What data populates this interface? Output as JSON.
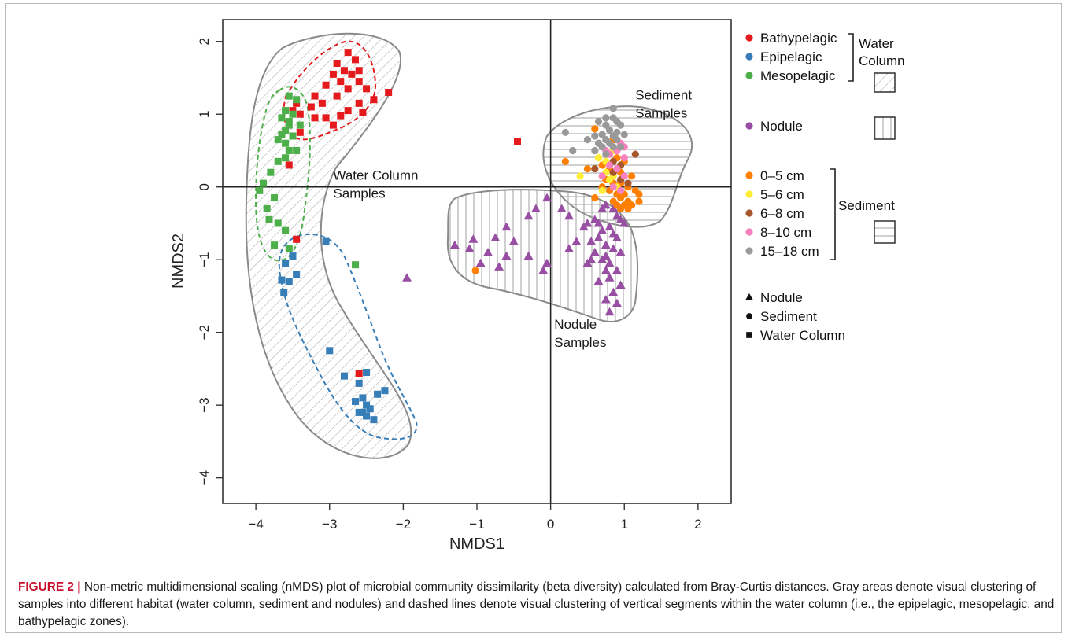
{
  "caption": {
    "label": "FIGURE 2 |",
    "text": " Non-metric multidimensional scaling (nMDS) plot of microbial community dissimilarity (beta diversity) calculated from Bray-Curtis distances. Gray areas denote visual clustering of samples into different habitat (water column, sediment and nodules) and dashed lines denote visual clustering of vertical segments within the water column (i.e., the epipelagic, mesopelagic, and bathypelagic zones)."
  },
  "chart_data": {
    "type": "scatter",
    "xlabel": "NMDS1",
    "ylabel": "NMDS2",
    "xlim": [
      -4.45,
      2.45
    ],
    "ylim": [
      -4.35,
      2.3
    ],
    "xticks": [
      -4,
      -3,
      -2,
      -1,
      0,
      1,
      2
    ],
    "yticks": [
      -4,
      -3,
      -2,
      -1,
      0,
      1,
      2
    ],
    "xtick_labels": [
      "−4",
      "−3",
      "−2",
      "−1",
      "0",
      "1",
      "2"
    ],
    "ytick_labels": [
      "−4",
      "−3",
      "−2",
      "−1",
      "0",
      "1",
      "2"
    ],
    "reference_lines": {
      "x": 0,
      "y": 0
    },
    "annotations": [
      {
        "lines": [
          "Water Column",
          "Samples"
        ],
        "x": -2.95,
        "y": 0.1
      },
      {
        "lines": [
          "Sediment",
          "Samples"
        ],
        "x": 1.15,
        "y": 1.2
      },
      {
        "lines": [
          "Nodule",
          "Samples"
        ],
        "x": 0.05,
        "y": -1.95
      }
    ],
    "colors": {
      "Bathypelagic": "#e41a1c",
      "Epipelagic": "#377eb8",
      "Mesopelagic": "#4daf4a",
      "Nodule": "#984ea3",
      "0-5 cm": "#ff7f00",
      "5-6 cm": "#ffee33",
      "6-8 cm": "#a65628",
      "8-10 cm": "#f781bf",
      "15-18 cm": "#999999"
    },
    "legend": {
      "placement": "right",
      "color_entries": [
        {
          "label": "Bathypelagic",
          "color": "#e41a1c"
        },
        {
          "label": "Epipelagic",
          "color": "#377eb8"
        },
        {
          "label": "Mesopelagic",
          "color": "#4daf4a"
        },
        {
          "label": "Nodule",
          "color": "#984ea3"
        },
        {
          "label": "0–5 cm",
          "color": "#ff7f00"
        },
        {
          "label": "5–6 cm",
          "color": "#ffee33"
        },
        {
          "label": "6–8 cm",
          "color": "#a65628"
        },
        {
          "label": "8–10 cm",
          "color": "#f781bf"
        },
        {
          "label": "15–18 cm",
          "color": "#999999"
        }
      ],
      "group_labels": {
        "water_column": [
          "Water",
          "Column"
        ],
        "sediment": "Sediment"
      },
      "shape_entries": [
        {
          "label": "Nodule",
          "shape": "triangle"
        },
        {
          "label": "Sediment",
          "shape": "circle"
        },
        {
          "label": "Water Column",
          "shape": "square"
        }
      ]
    },
    "series": [
      {
        "name": "Bathypelagic",
        "shape": "square",
        "points": [
          [
            -2.75,
            1.85
          ],
          [
            -2.65,
            1.75
          ],
          [
            -2.9,
            1.7
          ],
          [
            -2.6,
            1.6
          ],
          [
            -2.8,
            1.6
          ],
          [
            -2.7,
            1.55
          ],
          [
            -2.95,
            1.55
          ],
          [
            -2.85,
            1.45
          ],
          [
            -2.6,
            1.45
          ],
          [
            -3.05,
            1.4
          ],
          [
            -2.5,
            1.35
          ],
          [
            -2.75,
            1.35
          ],
          [
            -2.4,
            1.2
          ],
          [
            -2.9,
            1.25
          ],
          [
            -3.2,
            1.25
          ],
          [
            -3.1,
            1.15
          ],
          [
            -2.6,
            1.15
          ],
          [
            -2.75,
            1.05
          ],
          [
            -2.55,
            1.02
          ],
          [
            -2.2,
            1.3
          ],
          [
            -3.25,
            1.1
          ],
          [
            -3.45,
            1.15
          ],
          [
            -3.5,
            1.05
          ],
          [
            -3.4,
            1.0
          ],
          [
            -3.2,
            0.95
          ],
          [
            -3.05,
            0.95
          ],
          [
            -2.85,
            0.98
          ],
          [
            -2.95,
            0.85
          ],
          [
            -3.4,
            0.75
          ],
          [
            -3.55,
            0.3
          ],
          [
            -3.45,
            -0.72
          ],
          [
            -2.6,
            -2.57
          ],
          [
            -0.45,
            0.62
          ]
        ]
      },
      {
        "name": "Epipelagic",
        "shape": "square",
        "points": [
          [
            -3.05,
            -0.75
          ],
          [
            -3.5,
            -0.95
          ],
          [
            -3.6,
            -1.05
          ],
          [
            -3.45,
            -1.2
          ],
          [
            -3.55,
            -1.3
          ],
          [
            -3.65,
            -1.28
          ],
          [
            -3.62,
            -1.45
          ],
          [
            -3.0,
            -2.25
          ],
          [
            -2.8,
            -2.6
          ],
          [
            -2.5,
            -2.55
          ],
          [
            -2.6,
            -2.7
          ],
          [
            -2.25,
            -2.8
          ],
          [
            -2.35,
            -2.85
          ],
          [
            -2.55,
            -2.9
          ],
          [
            -2.65,
            -2.95
          ],
          [
            -2.5,
            -3.0
          ],
          [
            -2.45,
            -3.05
          ],
          [
            -2.55,
            -3.1
          ],
          [
            -2.6,
            -3.1
          ],
          [
            -2.5,
            -3.15
          ],
          [
            -2.4,
            -3.2
          ]
        ]
      },
      {
        "name": "Mesopelagic",
        "shape": "square",
        "points": [
          [
            -3.55,
            1.25
          ],
          [
            -3.45,
            1.2
          ],
          [
            -3.6,
            1.05
          ],
          [
            -3.5,
            1.0
          ],
          [
            -3.65,
            0.95
          ],
          [
            -3.55,
            0.85
          ],
          [
            -3.4,
            0.85
          ],
          [
            -3.6,
            0.78
          ],
          [
            -3.5,
            0.7
          ],
          [
            -3.7,
            0.65
          ],
          [
            -3.6,
            0.6
          ],
          [
            -3.55,
            0.5
          ],
          [
            -3.45,
            0.5
          ],
          [
            -3.6,
            0.4
          ],
          [
            -3.7,
            0.35
          ],
          [
            -3.8,
            0.2
          ],
          [
            -3.9,
            0.05
          ],
          [
            -3.95,
            -0.05
          ],
          [
            -3.75,
            -0.15
          ],
          [
            -3.85,
            -0.3
          ],
          [
            -3.82,
            -0.45
          ],
          [
            -3.7,
            -0.5
          ],
          [
            -3.6,
            -0.6
          ],
          [
            -3.75,
            -0.8
          ],
          [
            -3.55,
            -0.85
          ],
          [
            -2.65,
            -1.07
          ],
          [
            -3.55,
            0.9
          ],
          [
            -3.65,
            0.72
          ]
        ]
      },
      {
        "name": "Nodule",
        "shape": "triangle",
        "points": [
          [
            -0.05,
            -0.15
          ],
          [
            -0.2,
            -0.3
          ],
          [
            0.15,
            -0.3
          ],
          [
            0.25,
            -0.4
          ],
          [
            -0.3,
            -0.4
          ],
          [
            -0.6,
            -0.55
          ],
          [
            -0.5,
            -0.75
          ],
          [
            -0.75,
            -0.7
          ],
          [
            -1.05,
            -0.72
          ],
          [
            -0.85,
            -0.9
          ],
          [
            -1.3,
            -0.8
          ],
          [
            -1.1,
            -0.85
          ],
          [
            -0.6,
            -0.95
          ],
          [
            -0.3,
            -0.95
          ],
          [
            -0.95,
            -1.05
          ],
          [
            -0.7,
            -1.1
          ],
          [
            -0.1,
            -1.15
          ],
          [
            -0.05,
            -1.05
          ],
          [
            0.25,
            -0.85
          ],
          [
            0.35,
            -0.75
          ],
          [
            0.45,
            -0.55
          ],
          [
            0.5,
            -0.5
          ],
          [
            0.6,
            -0.45
          ],
          [
            0.7,
            -0.3
          ],
          [
            0.75,
            -0.25
          ],
          [
            0.85,
            -0.3
          ],
          [
            0.9,
            -0.4
          ],
          [
            0.95,
            -0.45
          ],
          [
            1.0,
            -0.5
          ],
          [
            0.8,
            -0.55
          ],
          [
            0.7,
            -0.6
          ],
          [
            0.65,
            -0.7
          ],
          [
            0.9,
            -0.7
          ],
          [
            0.75,
            -0.8
          ],
          [
            0.85,
            -0.85
          ],
          [
            0.95,
            -0.9
          ],
          [
            0.6,
            -0.9
          ],
          [
            0.7,
            -1.0
          ],
          [
            0.8,
            -1.05
          ],
          [
            0.5,
            -1.05
          ],
          [
            0.9,
            -1.15
          ],
          [
            0.75,
            -1.15
          ],
          [
            0.8,
            -1.25
          ],
          [
            0.65,
            -1.3
          ],
          [
            0.95,
            -1.35
          ],
          [
            0.85,
            -1.45
          ],
          [
            0.75,
            -1.55
          ],
          [
            0.9,
            -1.6
          ],
          [
            0.8,
            -1.72
          ],
          [
            0.55,
            -1.0
          ],
          [
            0.55,
            -0.75
          ],
          [
            0.65,
            -0.5
          ],
          [
            0.85,
            -0.65
          ],
          [
            0.75,
            -0.95
          ],
          [
            -1.95,
            -1.25
          ]
        ]
      },
      {
        "name": "0-5 cm",
        "shape": "circle",
        "points": [
          [
            0.6,
            0.8
          ],
          [
            0.85,
            0.65
          ],
          [
            0.2,
            0.35
          ],
          [
            0.7,
            0.3
          ],
          [
            0.9,
            0.4
          ],
          [
            1.0,
            0.35
          ],
          [
            0.5,
            0.25
          ],
          [
            0.8,
            0.25
          ],
          [
            0.95,
            0.2
          ],
          [
            1.1,
            0.15
          ],
          [
            0.75,
            0.1
          ],
          [
            0.85,
            0.05
          ],
          [
            0.95,
            0.05
          ],
          [
            1.05,
            0.0
          ],
          [
            0.7,
            0.0
          ],
          [
            0.8,
            -0.05
          ],
          [
            0.9,
            -0.1
          ],
          [
            1.0,
            -0.1
          ],
          [
            1.15,
            -0.05
          ],
          [
            1.2,
            -0.1
          ],
          [
            0.95,
            -0.15
          ],
          [
            1.05,
            -0.2
          ],
          [
            0.85,
            -0.2
          ],
          [
            1.0,
            -0.25
          ],
          [
            1.1,
            -0.25
          ],
          [
            0.9,
            -0.25
          ],
          [
            1.05,
            -0.3
          ],
          [
            0.95,
            -0.3
          ],
          [
            0.6,
            -0.15
          ],
          [
            1.2,
            -0.2
          ],
          [
            -1.02,
            -1.15
          ]
        ]
      },
      {
        "name": "5-6 cm",
        "shape": "circle",
        "points": [
          [
            0.85,
            0.5
          ],
          [
            0.65,
            0.4
          ],
          [
            0.75,
            0.35
          ],
          [
            0.4,
            0.15
          ],
          [
            0.85,
            0.15
          ],
          [
            0.75,
            0.2
          ],
          [
            0.9,
            0.0
          ],
          [
            0.8,
            0.1
          ],
          [
            0.7,
            -0.05
          ]
        ]
      },
      {
        "name": "6-8 cm",
        "shape": "circle",
        "points": [
          [
            1.15,
            0.45
          ],
          [
            0.95,
            0.3
          ],
          [
            0.85,
            0.35
          ],
          [
            0.6,
            0.25
          ],
          [
            0.95,
            0.1
          ],
          [
            0.85,
            0.2
          ],
          [
            1.05,
            0.05
          ]
        ]
      },
      {
        "name": "8-10 cm",
        "shape": "circle",
        "points": [
          [
            1.0,
            0.55
          ],
          [
            0.95,
            0.6
          ],
          [
            0.9,
            0.5
          ],
          [
            0.8,
            0.45
          ],
          [
            1.0,
            0.4
          ],
          [
            0.75,
            0.5
          ],
          [
            0.8,
            0.3
          ],
          [
            0.9,
            0.25
          ],
          [
            0.7,
            0.15
          ],
          [
            1.0,
            0.15
          ],
          [
            0.95,
            -0.05
          ],
          [
            0.85,
            0.0
          ]
        ]
      },
      {
        "name": "15-18 cm",
        "shape": "circle",
        "points": [
          [
            0.85,
            1.08
          ],
          [
            0.75,
            0.95
          ],
          [
            0.85,
            0.95
          ],
          [
            0.9,
            0.9
          ],
          [
            0.65,
            0.9
          ],
          [
            0.95,
            0.85
          ],
          [
            0.75,
            0.85
          ],
          [
            0.8,
            0.78
          ],
          [
            0.9,
            0.75
          ],
          [
            0.7,
            0.72
          ],
          [
            0.6,
            0.7
          ],
          [
            1.0,
            0.72
          ],
          [
            0.85,
            0.7
          ],
          [
            0.75,
            0.65
          ],
          [
            0.9,
            0.65
          ],
          [
            0.65,
            0.6
          ],
          [
            0.8,
            0.6
          ],
          [
            0.95,
            0.55
          ],
          [
            0.7,
            0.55
          ],
          [
            0.85,
            0.55
          ],
          [
            0.2,
            0.75
          ],
          [
            0.5,
            0.65
          ],
          [
            0.75,
            0.45
          ],
          [
            0.6,
            0.5
          ],
          [
            0.3,
            0.5
          ]
        ]
      }
    ]
  }
}
